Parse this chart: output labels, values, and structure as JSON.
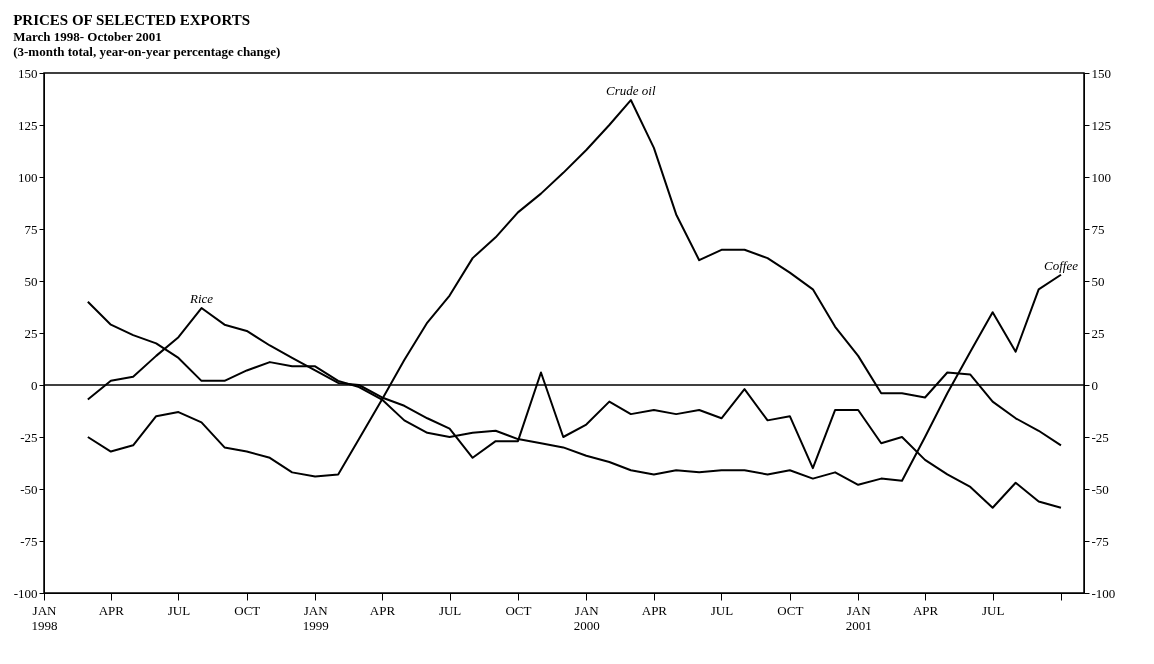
{
  "chart_data": {
    "type": "line",
    "title": "PRICES OF SELECTED EXPORTS",
    "subtitle": "March 1998- October 2001\n(3-month total, year-on-year percentage change)",
    "x": [
      "1998-03",
      "1998-04",
      "1998-05",
      "1998-06",
      "1998-07",
      "1998-08",
      "1998-09",
      "1998-10",
      "1998-11",
      "1998-12",
      "1999-01",
      "1999-02",
      "1999-03",
      "1999-04",
      "1999-05",
      "1999-06",
      "1999-07",
      "1999-08",
      "1999-09",
      "1999-10",
      "1999-11",
      "1999-12",
      "2000-01",
      "2000-02",
      "2000-03",
      "2000-04",
      "2000-05",
      "2000-06",
      "2000-07",
      "2000-08",
      "2000-09",
      "2000-10",
      "2000-11",
      "2000-12",
      "2001-01",
      "2001-02",
      "2001-03",
      "2001-04",
      "2001-05",
      "2001-06",
      "2001-07",
      "2001-08",
      "2001-09",
      "2001-10"
    ],
    "series": [
      {
        "name": "Coffee",
        "color": "#000000",
        "values": [
          40,
          29,
          24,
          20,
          13,
          2,
          2,
          7,
          11,
          9,
          9,
          2,
          -1,
          -7,
          -17,
          -23,
          -25,
          -23,
          -22,
          -26,
          -28,
          -30,
          -34,
          -37,
          -41,
          -43,
          -41,
          -42,
          -41,
          -41,
          -43,
          -41,
          -45,
          -42,
          -48,
          -45,
          -46,
          -25,
          -4,
          16,
          35,
          16,
          46,
          53
        ]
      },
      {
        "name": "Rice",
        "color": "#000000",
        "values": [
          -7,
          2,
          4,
          14,
          23,
          37,
          29,
          26,
          19,
          13,
          7,
          1,
          0,
          -6,
          -10,
          -16,
          -21,
          -35,
          -27,
          -27,
          6,
          -25,
          -19,
          -8,
          -14,
          -12,
          -14,
          -12,
          -16,
          -2,
          -17,
          -15,
          -40,
          -12,
          -12,
          -28,
          -25,
          -36,
          -43,
          -49,
          -59,
          -47,
          -56,
          -59
        ]
      },
      {
        "name": "Crude oil",
        "color": "#000000",
        "values": [
          -25,
          -32,
          -29,
          -15,
          -13,
          -18,
          -30,
          -32,
          -35,
          -42,
          -44,
          -43,
          -26,
          -7,
          12,
          30,
          43,
          61,
          71,
          83,
          92,
          102,
          113,
          125,
          137,
          114,
          82,
          60,
          65,
          65,
          61,
          54,
          46,
          28,
          14,
          -4,
          -4,
          -6,
          6,
          5,
          -8,
          -16,
          -22,
          -29
        ]
      }
    ],
    "xlim": [
      "1998-01-01",
      "2001-11-01"
    ],
    "xticks": [
      {
        "value": "1998-01-01",
        "label": "JAN\n1998"
      },
      {
        "value": "1998-04-01",
        "label": "APR"
      },
      {
        "value": "1998-07-01",
        "label": "JUL"
      },
      {
        "value": "1998-10-01",
        "label": "OCT"
      },
      {
        "value": "1999-01-01",
        "label": "JAN\n1999"
      },
      {
        "value": "1999-04-01",
        "label": "APR"
      },
      {
        "value": "1999-07-01",
        "label": "JUL"
      },
      {
        "value": "1999-10-01",
        "label": "OCT"
      },
      {
        "value": "2000-01-01",
        "label": "JAN\n2000"
      },
      {
        "value": "2000-04-01",
        "label": "APR"
      },
      {
        "value": "2000-07-01",
        "label": "JUL"
      },
      {
        "value": "2000-10-01",
        "label": "OCT"
      },
      {
        "value": "2001-01-01",
        "label": "JAN\n2001"
      },
      {
        "value": "2001-04-01",
        "label": "APR"
      },
      {
        "value": "2001-07-01",
        "label": "JUL"
      },
      {
        "value": "2001-10-01",
        "label": null
      }
    ],
    "ylim": [
      -100,
      150
    ],
    "yticks": [
      -100,
      -75,
      -50,
      -25,
      0,
      25,
      50,
      75,
      100,
      125,
      150
    ],
    "y2lim": [
      -100,
      150
    ],
    "y2ticks": [
      -100,
      -75,
      -50,
      -25,
      0,
      25,
      50,
      75,
      100,
      125,
      150
    ],
    "ref_lines": [
      {
        "axis": "y",
        "value": 0,
        "color": "#000000"
      }
    ],
    "line_style": "solid",
    "legend": false,
    "grid": false
  }
}
